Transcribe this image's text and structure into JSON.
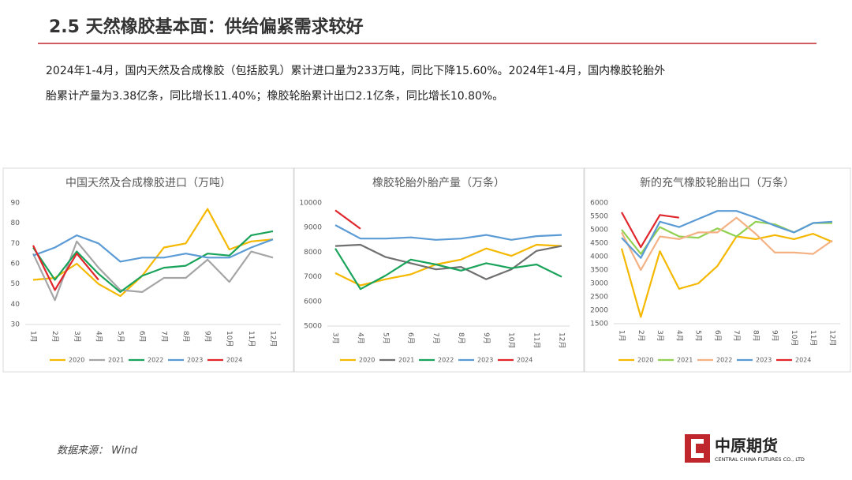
{
  "title": "2.5 天然橡胶基本面：供给偏紧需求较好",
  "paragraph": [
    "2024年1-4月，国内天然及合成橡胶（包括胶乳）累计进口量为233万吨，同比下降15.60%。2024年1-4月，国内橡胶轮胎外",
    "胎累计产量为3.38亿条，同比增长11.40%；橡胶轮胎累计出口2.1亿条，同比增长10.80%。"
  ],
  "source": "数据来源： Wind",
  "logo": {
    "name": "中原期货",
    "subtitle": "CENTRAL CHINA FUTURES CO., LTD"
  },
  "chart_data": [
    {
      "type": "line",
      "title": "中国天然及合成橡胶进口（万吨）",
      "legend": "bottom",
      "grid": false,
      "categories": [
        "1月",
        "2月",
        "3月",
        "4月",
        "5月",
        "6月",
        "7月",
        "8月",
        "9月",
        "10月",
        "11月",
        "12月"
      ],
      "ylim": [
        30,
        90
      ],
      "yticks": [
        30,
        40,
        50,
        60,
        70,
        80,
        90
      ],
      "series": [
        {
          "name": "2020",
          "color": "#f5b800",
          "values": [
            52,
            53,
            60,
            50,
            44,
            54,
            68,
            70,
            87,
            67,
            71,
            72
          ]
        },
        {
          "name": "2021",
          "color": "#a5a5a5",
          "values": [
            65,
            42,
            71,
            58,
            47,
            46,
            53,
            53,
            62,
            51,
            66,
            63
          ]
        },
        {
          "name": "2022",
          "color": "#1aa35a",
          "values": [
            68,
            52,
            66,
            55,
            46,
            54,
            58,
            59,
            65,
            64,
            74,
            76
          ]
        },
        {
          "name": "2023",
          "color": "#5b9bd5",
          "values": [
            64,
            68,
            74,
            70,
            61,
            63,
            63,
            65,
            63,
            63,
            68,
            72
          ]
        },
        {
          "name": "2024",
          "color": "#e0262b",
          "values": [
            69,
            47,
            65,
            52,
            null,
            null,
            null,
            null,
            null,
            null,
            null,
            null
          ]
        }
      ]
    },
    {
      "type": "line",
      "title": "橡胶轮胎外胎产量（万条）",
      "legend": "bottom",
      "grid": false,
      "categories": [
        "3月",
        "4月",
        "5月",
        "6月",
        "7月",
        "8月",
        "9月",
        "10月",
        "11月",
        "12月"
      ],
      "ylim": [
        5000,
        10000
      ],
      "yticks": [
        5000,
        6000,
        7000,
        8000,
        9000,
        10000
      ],
      "series": [
        {
          "name": "2020",
          "color": "#f5b800",
          "values": [
            7150,
            6650,
            6900,
            7100,
            7500,
            7700,
            8150,
            7850,
            8300,
            8250
          ]
        },
        {
          "name": "2021",
          "color": "#707070",
          "values": [
            8250,
            8300,
            7800,
            7550,
            7300,
            7400,
            6900,
            7300,
            8050,
            8250
          ]
        },
        {
          "name": "2022",
          "color": "#1aa35a",
          "values": [
            8150,
            6500,
            7050,
            7700,
            7500,
            7250,
            7550,
            7350,
            7500,
            7000
          ]
        },
        {
          "name": "2023",
          "color": "#5b9bd5",
          "values": [
            9100,
            8550,
            8550,
            8600,
            8500,
            8550,
            8700,
            8500,
            8650,
            8700
          ]
        },
        {
          "name": "2024",
          "color": "#e0262b",
          "values": [
            9700,
            8950,
            null,
            null,
            null,
            null,
            null,
            null,
            null,
            null
          ]
        }
      ]
    },
    {
      "type": "line",
      "title": "新的充气橡胶轮胎出口（万条）",
      "legend": "bottom",
      "grid": false,
      "categories": [
        "1月",
        "2月",
        "3月",
        "4月",
        "5月",
        "6月",
        "7月",
        "8月",
        "9月",
        "10月",
        "11月",
        "12月"
      ],
      "ylim": [
        1500,
        6000
      ],
      "yticks": [
        1500,
        2000,
        2500,
        3000,
        3500,
        4000,
        4500,
        5000,
        5500,
        6000
      ],
      "series": [
        {
          "name": "2020",
          "color": "#f5b800",
          "values": [
            4300,
            1750,
            4200,
            2800,
            3000,
            3650,
            4750,
            4650,
            4800,
            4650,
            4850,
            4550
          ]
        },
        {
          "name": "2021",
          "color": "#92d050",
          "values": [
            5000,
            4100,
            5100,
            4750,
            4700,
            5050,
            4750,
            5300,
            5200,
            4900,
            5250,
            5250
          ]
        },
        {
          "name": "2022",
          "color": "#f4b183",
          "values": [
            4900,
            3500,
            4750,
            4650,
            4900,
            4900,
            5450,
            4850,
            4150,
            4150,
            4100,
            4600
          ]
        },
        {
          "name": "2023",
          "color": "#5b9bd5",
          "values": [
            4700,
            3950,
            5300,
            5100,
            5400,
            5700,
            5700,
            5450,
            5150,
            4900,
            5250,
            5300
          ]
        },
        {
          "name": "2024",
          "color": "#e0262b",
          "values": [
            5650,
            4350,
            5550,
            5450,
            null,
            null,
            null,
            null,
            null,
            null,
            null,
            null
          ]
        }
      ]
    }
  ]
}
